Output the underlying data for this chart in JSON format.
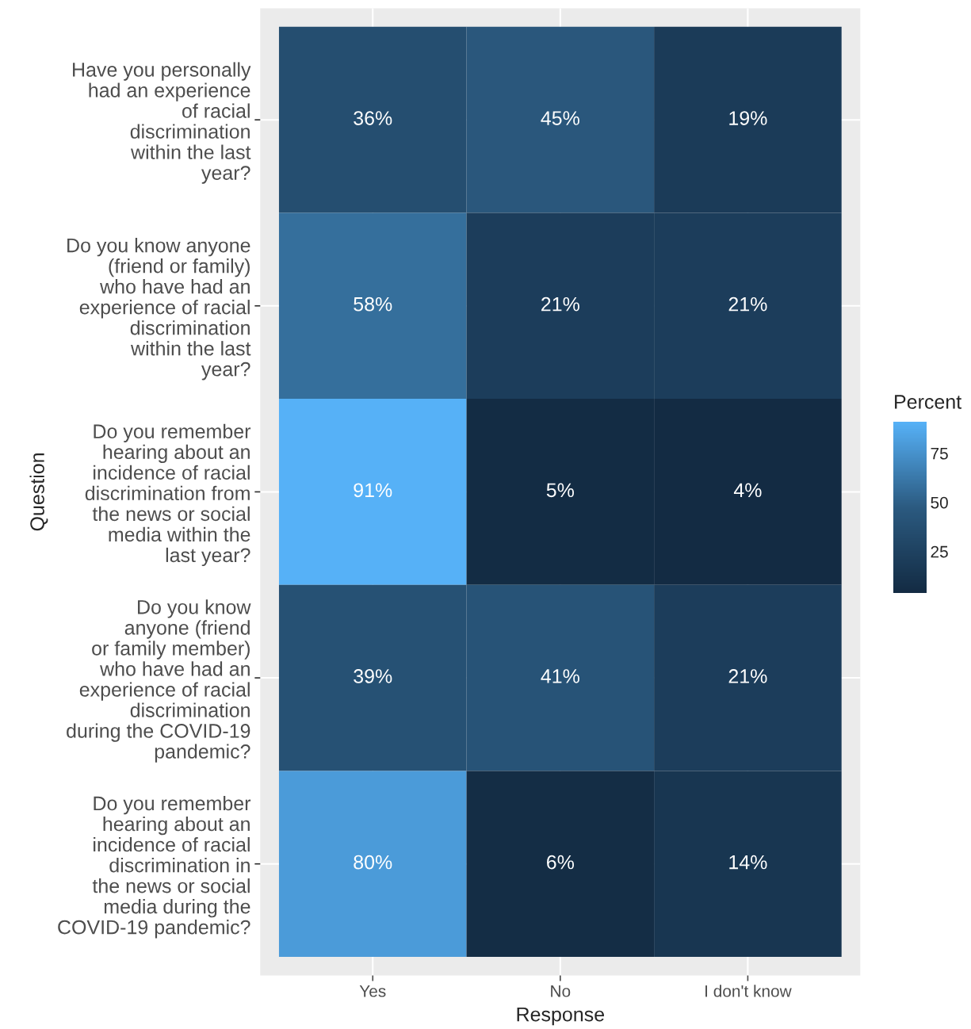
{
  "chart_data": {
    "type": "heatmap",
    "xlabel": "Response",
    "ylabel": "Question",
    "clabel": "Percent",
    "categories": [
      "Yes",
      "No",
      "I don't know"
    ],
    "y_categories": [
      "Have you personally\nhad an experience\nof racial\ndiscrimination\nwithin the last\nyear?",
      "Do you know anyone\n(friend or family)\nwho have had an\nexperience of racial\ndiscrimination\nwithin the last\nyear?",
      "Do you remember\nhearing about an\nincidence of racial\ndiscrimination from\nthe news or social\nmedia within the\nlast year?",
      "Do you know\nanyone (friend\nor family member)\nwho have had an\nexperience of racial\ndiscrimination\nduring the COVID-19\npandemic?",
      "Do you remember\nhearing about an\nincidence of racial\ndiscrimination in\nthe news or social\nmedia during the\nCOVID-19 pandemic?"
    ],
    "cells": [
      [
        36,
        45,
        19
      ],
      [
        58,
        21,
        21
      ],
      [
        91,
        5,
        4
      ],
      [
        39,
        41,
        21
      ],
      [
        80,
        6,
        14
      ]
    ],
    "cell_labels": [
      [
        "36%",
        "45%",
        "19%"
      ],
      [
        "58%",
        "21%",
        "21%"
      ],
      [
        "91%",
        "5%",
        "4%"
      ],
      [
        "39%",
        "41%",
        "21%"
      ],
      [
        "80%",
        "6%",
        "14%"
      ]
    ],
    "clim": [
      4,
      91
    ],
    "cticks": [
      25,
      50,
      75
    ],
    "grid": true
  }
}
